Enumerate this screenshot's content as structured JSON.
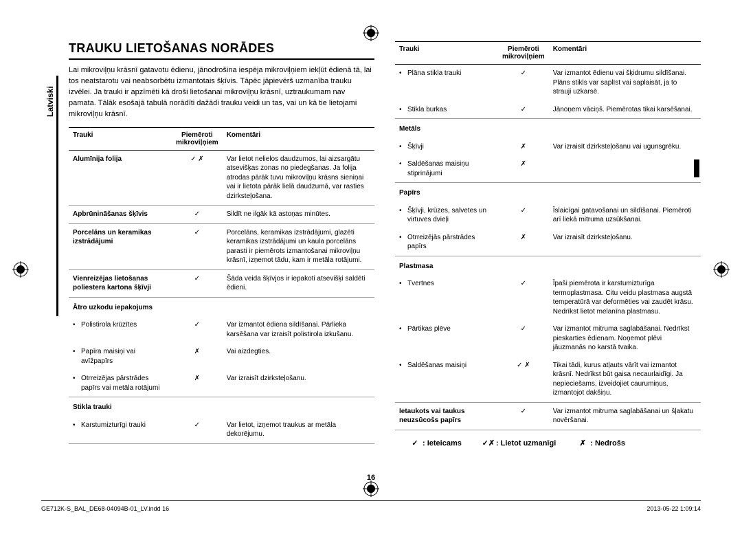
{
  "sideTab": "Latviski",
  "heading": "TRAUKU LIETOŠANAS NORĀDES",
  "intro": "Lai mikroviļņu krāsnī gatavotu ēdienu, jānodrošina iespēja mikroviļņiem iekļūt ēdienā tā, lai tos neatstarotu vai neabsorbētu izmantotais šķīvis. Tāpēc jāpievērš uzmanība trauku izvēlei. Ja trauki ir apzīmēti kā droši lietošanai mikroviļņu krāsnī, uztraukumam nav pamata. Tālāk esošajā tabulā norādīti dažādi trauku veidi un tas, vai un kā tie lietojami mikroviļņu krāsnī.",
  "th1": "Trauki",
  "th2": "Piemēroti mikroviļņiem",
  "th3": "Komentāri",
  "leftRows": [
    {
      "c1b": "Alumīnija folija",
      "c2": "✓ ✗",
      "c3": "Var lietot nelielos daudzumos, lai aizsargātu atsevišķas zonas no piedegšanas. Ja folija atrodas pārāk tuvu mikroviļņu krāsns sieniņai vai ir lietota pārāk lielā daudzumā, var rasties dzirksteļošana."
    },
    {
      "c1b": "Apbrūnināšanas šķīvis",
      "c2": "✓",
      "c3": "Sildīt ne ilgāk kā astoņas minūtes."
    },
    {
      "c1b": "Porcelāns un keramikas izstrādājumi",
      "c2": "✓",
      "c3": "Porcelāns, keramikas izstrādājumi, glazēti keramikas izstrādājumi un kaula porcelāns parasti ir piemērots izmantošanai mikroviļņu krāsnī, izņemot tādu, kam ir metāla rotājumi."
    },
    {
      "c1b": "Vienreizējas lietošanas poliestera kartona šķīvji",
      "c2": "✓",
      "c3": "Šāda veida šķīvjos ir iepakoti atsevišķi saldēti ēdieni."
    }
  ],
  "leftSub1": "Ātro uzkodu iepakojums",
  "leftSubRows1": [
    {
      "c1": "Polistirola krūzītes",
      "c2": "✓",
      "c3": "Var izmantot ēdiena sildīšanai. Pārlieka karsēšana var izraisīt polistirola izkušanu."
    },
    {
      "c1": "Papīra maisiņi vai avīžpapīrs",
      "c2": "✗",
      "c3": "Vai aizdegties."
    },
    {
      "c1": "Otrreizējas pārstrādes papīrs vai metāla rotājumi",
      "c2": "✗",
      "c3": "Var izraisīt dzirksteļošanu."
    }
  ],
  "leftSub2": "Stikla trauki",
  "leftSubRows2": [
    {
      "c1": "Karstumizturīgi trauki",
      "c2": "✓",
      "c3": "Var lietot, izņemot traukus ar metāla dekorējumu."
    }
  ],
  "rightTopRows": [
    {
      "c1": "Plāna stikla trauki",
      "c2": "✓",
      "c3": "Var izmantot ēdienu vai šķidrumu sildīšanai. Plāns stikls var saplīst vai saplaisāt, ja to strauji uzkarsē."
    },
    {
      "c1": "Stikla burkas",
      "c2": "✓",
      "c3": "Jānoņem vāciņš. Piemērotas tikai karsēšanai."
    }
  ],
  "rightSub1": "Metāls",
  "rightSubRows1": [
    {
      "c1": "Šķīvji",
      "c2": "✗",
      "c3": "Var izraisīt dzirksteļošanu vai ugunsgrēku."
    },
    {
      "c1": "Saldēšanas maisiņu stiprinājumi",
      "c2": "✗",
      "c3": ""
    }
  ],
  "rightSub2": "Papīrs",
  "rightSubRows2": [
    {
      "c1": "Šķīvji, krūzes, salvetes un virtuves dvieļi",
      "c2": "✓",
      "c3": "Īslaicīgai gatavošanai un sildīšanai. Piemēroti arī liekā mitruma uzsūkšanai."
    },
    {
      "c1": "Otrreizējās pārstrādes papīrs",
      "c2": "✗",
      "c3": "Var izraisīt dzirksteļošanu."
    }
  ],
  "rightSub3": "Plastmasa",
  "rightSubRows3": [
    {
      "c1": "Tvertnes",
      "c2": "✓",
      "c3": "Īpaši piemērota ir karstumizturīga termoplastmasa. Citu veidu plastmasa augstā temperatūrā var deformēties vai zaudēt krāsu. Nedrīkst lietot melanīna plastmasu."
    },
    {
      "c1": "Pārtikas plēve",
      "c2": "✓",
      "c3": "Var izmantot mitruma saglabāšanai. Nedrīkst pieskarties ēdienam. Noņemot plēvi jāuzmanās no karstā tvaika."
    },
    {
      "c1": "Saldēšanas maisiņi",
      "c2": "✓ ✗",
      "c3": "Tikai tādi, kurus atļauts vārīt vai izmantot krāsnī. Nedrīkst būt gaisa necaurlaidīgi. Ja nepieciešams, izveidojiet caurumiņus, izmantojot dakšiņu."
    }
  ],
  "rightLastRow": {
    "c1b": "Ietaukots vai taukus neuzsūcošs papīrs",
    "c2": "✓",
    "c3": "Var izmantot mitruma saglabāšanai un šļakatu novēršanai."
  },
  "legend": {
    "a": ": Ieteicams",
    "b": ": Lietot uzmanīgi",
    "c": ": Nedrošs",
    "sa": "✓",
    "sb": "✓✗",
    "sc": "✗"
  },
  "pageNum": "16",
  "footerLeft": "GE712K-S_BAL_DE68-04094B-01_LV.indd   16",
  "footerRight": "2013-05-22   1:09:14"
}
